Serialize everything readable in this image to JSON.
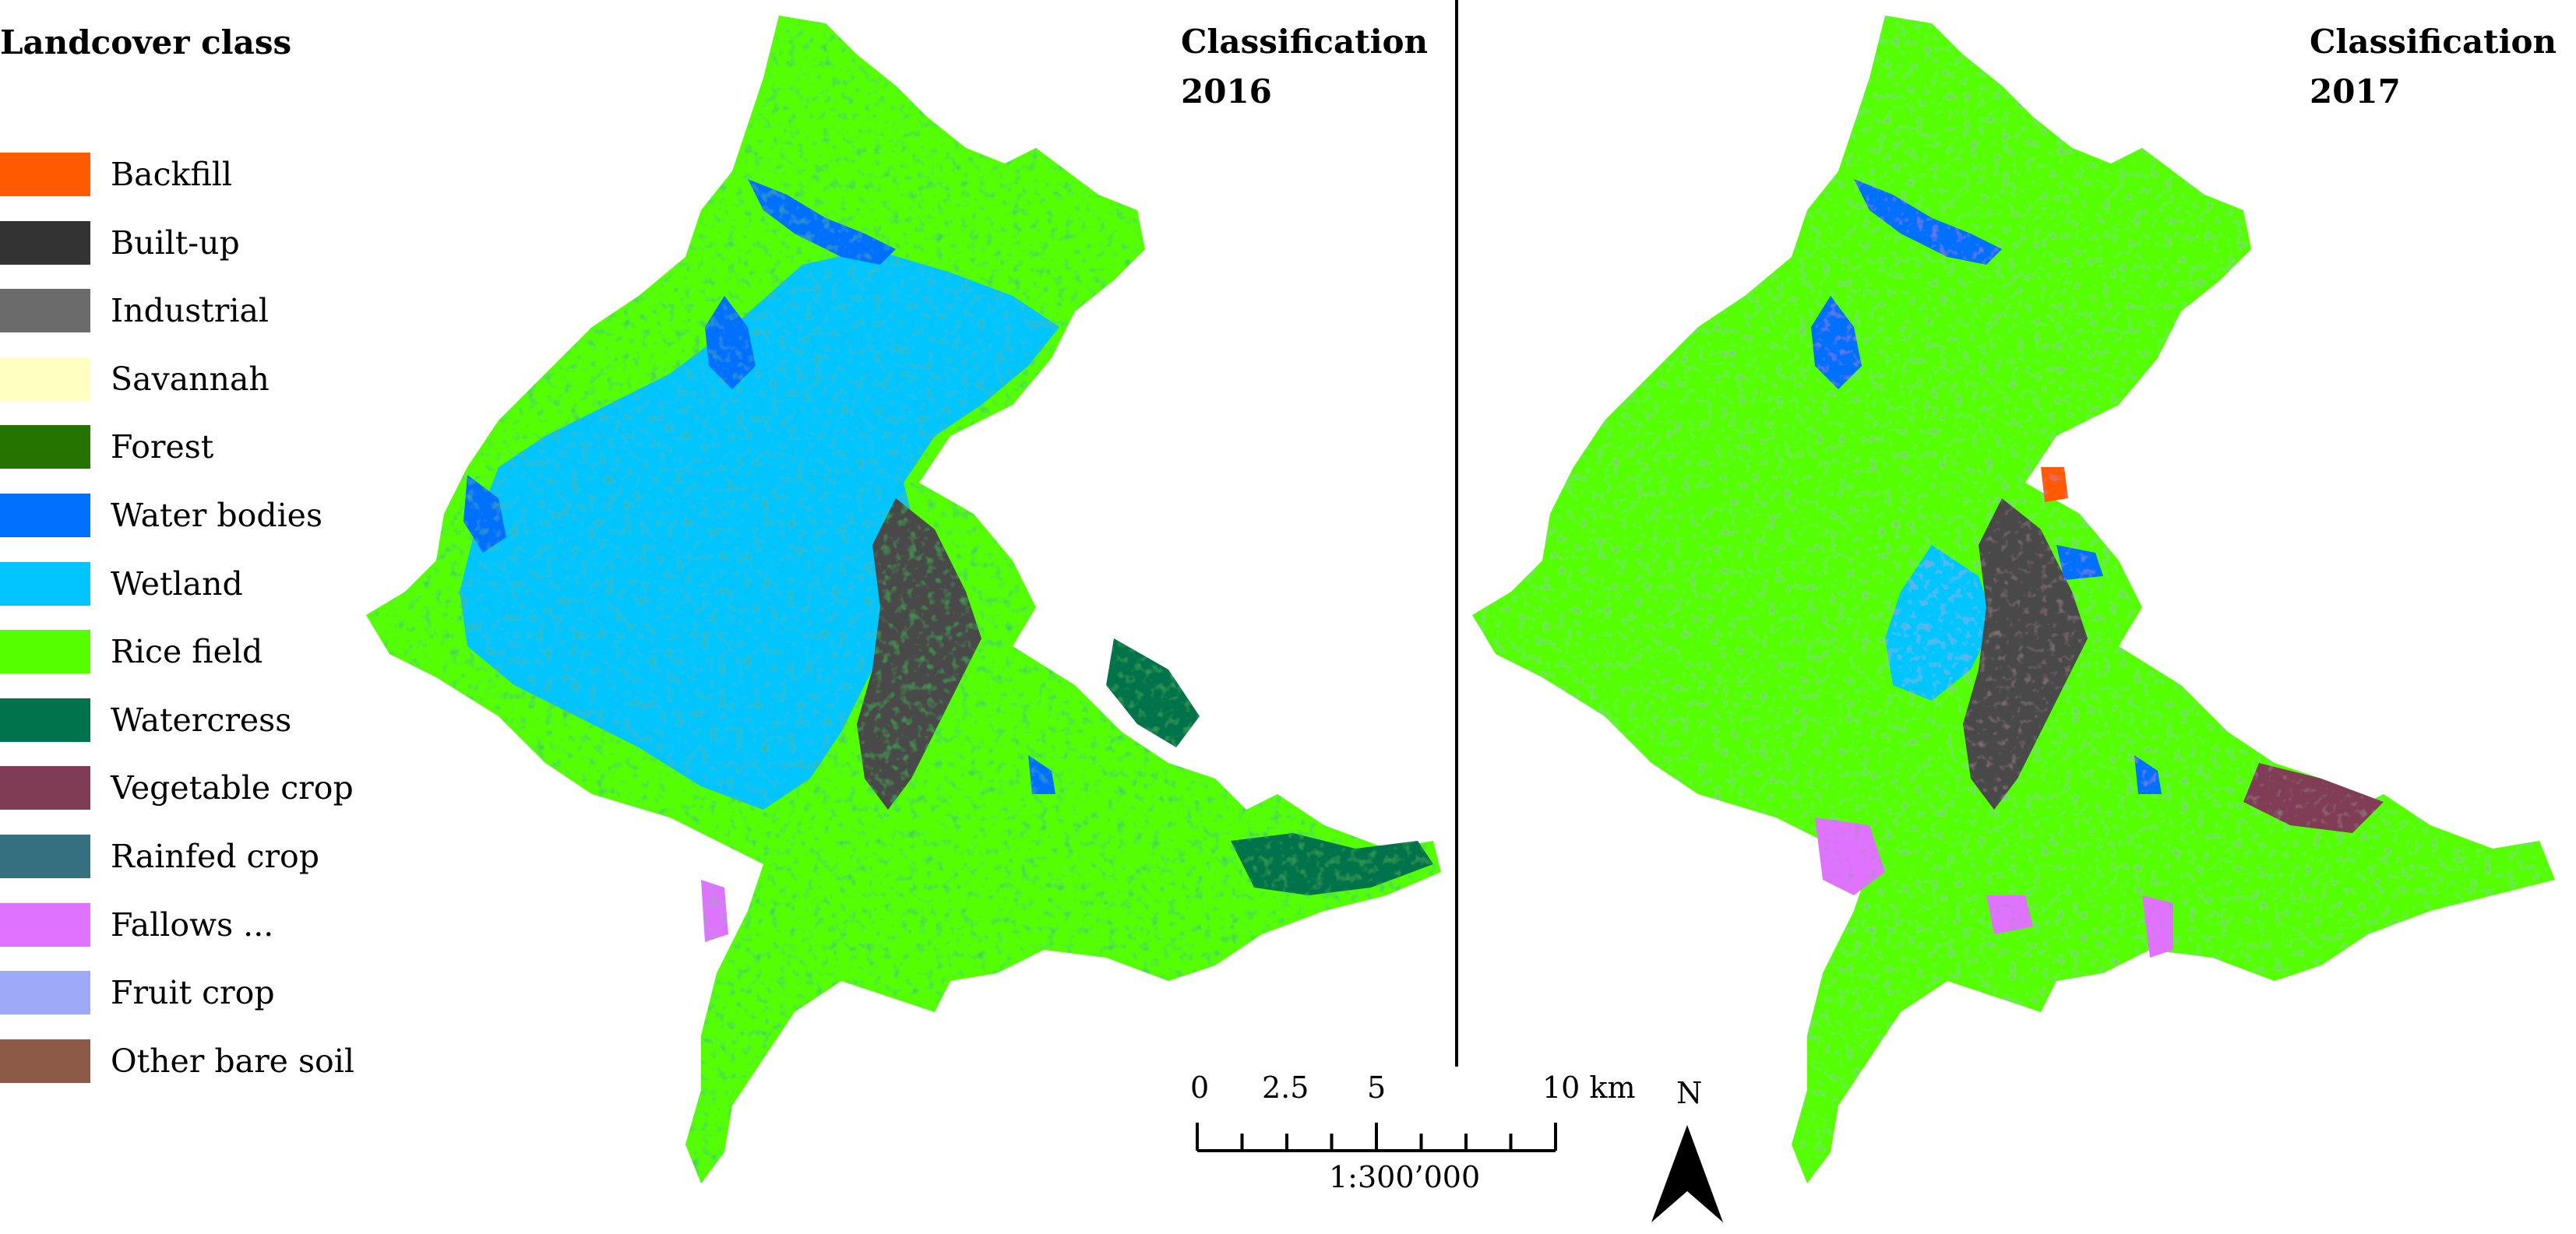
{
  "legend": {
    "title": "Landcover class",
    "items": [
      {
        "label": "Backfill",
        "color": "#ff5a00"
      },
      {
        "label": "Built-up",
        "color": "#333333"
      },
      {
        "label": "Industrial",
        "color": "#6b6b6b"
      },
      {
        "label": "Savannah",
        "color": "#ffffc0"
      },
      {
        "label": "Forest",
        "color": "#267300"
      },
      {
        "label": "Water bodies",
        "color": "#0070ff"
      },
      {
        "label": "Wetland",
        "color": "#00c5ff"
      },
      {
        "label": "Rice field",
        "color": "#55ff00"
      },
      {
        "label": "Watercress",
        "color": "#00734c"
      },
      {
        "label": "Vegetable crop",
        "color": "#803c55"
      },
      {
        "label": "Rainfed crop",
        "color": "#347080"
      },
      {
        "label": "Fallows ...",
        "color": "#df73ff"
      },
      {
        "label": "Fruit crop",
        "color": "#9eaaf7"
      },
      {
        "label": "Other bare soil",
        "color": "#8c5a46"
      }
    ]
  },
  "panels": [
    {
      "title": "Classification\n2016"
    },
    {
      "title": "Classification\n2017"
    }
  ],
  "scale_bar": {
    "tick_labels": [
      "0",
      "2.5",
      "5",
      "10 km"
    ],
    "ratio": "1:300’000"
  },
  "north_arrow": {
    "label": "N"
  }
}
